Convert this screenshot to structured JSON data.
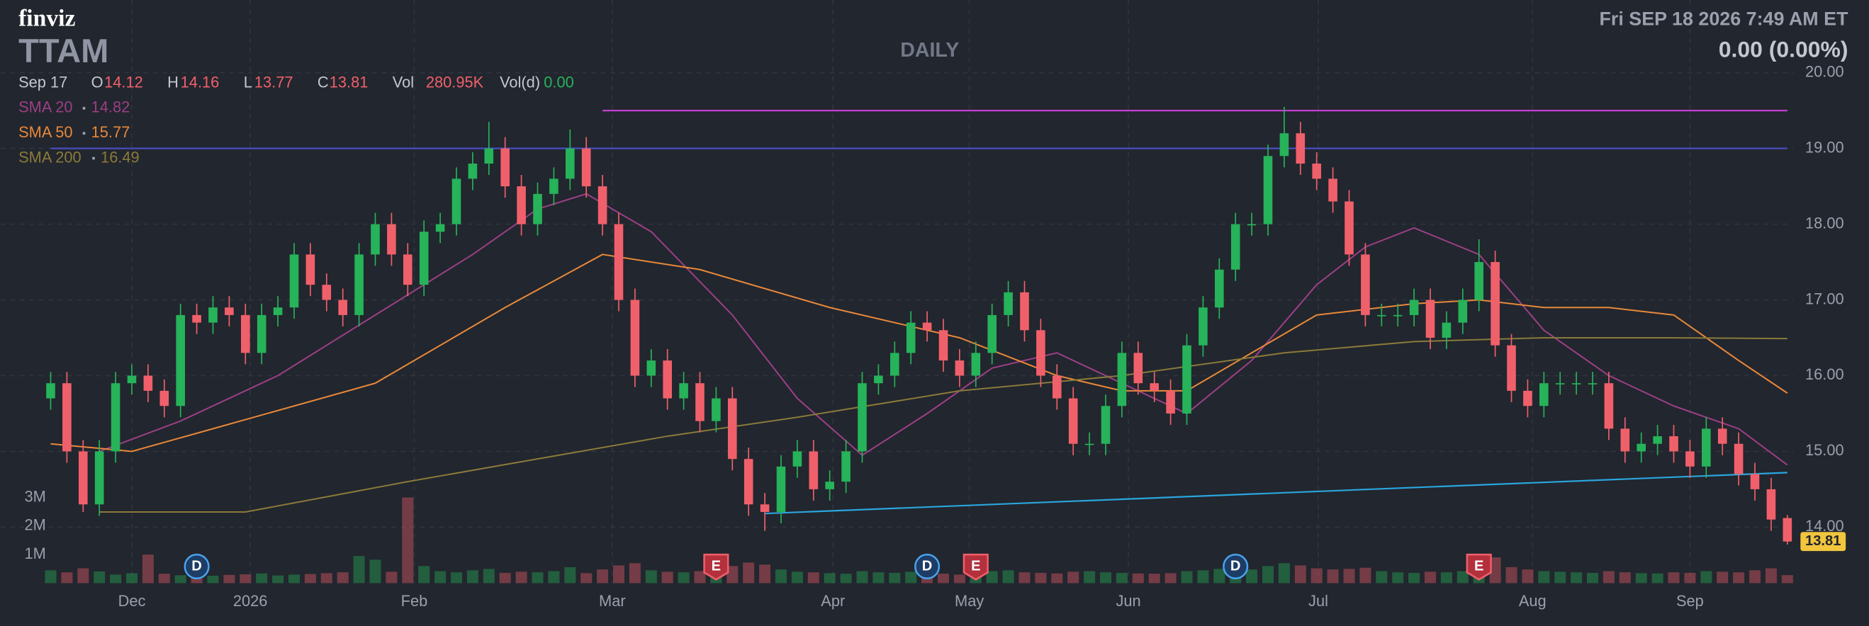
{
  "header": {
    "brand": "finviz",
    "ticker": "TTAM",
    "timeframe": "DAILY",
    "datetime": "Fri SEP 18 2026 7:49 AM ET",
    "change": "0.00 (0.00%)"
  },
  "chart_data": {
    "type": "candlestick",
    "legend": {
      "date": "Sep 17",
      "o": "O",
      "h": "H",
      "l": "L",
      "c": "C",
      "vol": "Vol",
      "vol_value": "280.95K",
      "vold": "Vol(d)",
      "vold_value": "0.00"
    },
    "up_color": "#26b35a",
    "down_color": "#f0606b",
    "xlim": [
      0,
      107
    ],
    "xticks": [
      {
        "value": 5,
        "label": "Dec"
      },
      {
        "value": 12.3,
        "label": "2026"
      },
      {
        "value": 22.4,
        "label": "Feb"
      },
      {
        "value": 34.6,
        "label": "Mar"
      },
      {
        "value": 48.2,
        "label": "Apr"
      },
      {
        "value": 56.6,
        "label": "May"
      },
      {
        "value": 66.4,
        "label": "Jun"
      },
      {
        "value": 78.1,
        "label": "Jul"
      },
      {
        "value": 91.3,
        "label": "Aug"
      },
      {
        "value": 101,
        "label": "Sep"
      }
    ],
    "ylim": [
      13.26,
      20.96
    ],
    "yticks": [
      {
        "value": 14,
        "label": "14.00"
      },
      {
        "value": 15,
        "label": "15.00"
      },
      {
        "value": 16,
        "label": "16.00"
      },
      {
        "value": 17,
        "label": "17.00"
      },
      {
        "value": 18,
        "label": "18.00"
      },
      {
        "value": 19,
        "label": "19.00"
      },
      {
        "value": 20,
        "label": "20.00"
      }
    ],
    "grid": true,
    "volume_lim": [
      0,
      3000000
    ],
    "volume_ticks": [
      {
        "value": 1000000,
        "label": "1M"
      },
      {
        "value": 2000000,
        "label": "2M"
      },
      {
        "value": 3000000,
        "label": "3M"
      }
    ],
    "open": [
      15.7,
      15.9,
      15.0,
      14.3,
      15.0,
      15.9,
      16.0,
      15.8,
      15.6,
      16.8,
      16.7,
      16.9,
      16.8,
      16.3,
      16.8,
      16.9,
      17.6,
      17.2,
      17.0,
      16.8,
      17.6,
      18.0,
      17.6,
      17.2,
      17.9,
      18.0,
      18.6,
      18.8,
      19.0,
      18.5,
      18.0,
      18.4,
      18.6,
      19.0,
      18.5,
      18.0,
      17.0,
      16.0,
      16.2,
      15.7,
      15.9,
      15.4,
      15.7,
      14.9,
      14.3,
      14.2,
      14.8,
      15.0,
      14.5,
      14.6,
      15.0,
      15.9,
      16.0,
      16.3,
      16.7,
      16.6,
      16.2,
      16.0,
      16.3,
      16.8,
      17.1,
      16.6,
      16.0,
      15.7,
      15.1,
      15.1,
      15.6,
      16.3,
      15.9,
      15.8,
      15.5,
      16.4,
      16.9,
      17.4,
      18.0,
      18.0,
      18.9,
      19.2,
      18.8,
      18.6,
      18.3,
      17.6,
      16.8,
      16.8,
      16.8,
      17.0,
      16.5,
      16.7,
      17.0,
      17.5,
      16.4,
      15.8,
      15.6,
      15.9,
      15.9,
      15.9,
      15.9,
      15.3,
      15.0,
      15.1,
      15.2,
      15.0,
      14.8,
      15.3,
      15.1,
      14.7,
      14.5,
      14.12
    ],
    "high": [
      16.05,
      16.05,
      15.15,
      15.15,
      16.05,
      16.15,
      16.15,
      15.95,
      16.95,
      16.95,
      17.05,
      17.05,
      16.95,
      16.95,
      17.05,
      17.75,
      17.75,
      17.35,
      17.15,
      17.75,
      18.15,
      18.15,
      17.75,
      18.05,
      18.15,
      18.75,
      18.95,
      19.35,
      19.15,
      18.65,
      18.55,
      18.75,
      19.25,
      19.15,
      18.65,
      18.15,
      17.15,
      16.35,
      16.35,
      16.05,
      16.05,
      15.85,
      15.85,
      15.05,
      14.45,
      14.95,
      15.15,
      15.15,
      14.75,
      15.15,
      16.05,
      16.15,
      16.45,
      16.85,
      16.85,
      16.75,
      16.35,
      16.45,
      16.95,
      17.25,
      17.25,
      16.75,
      16.15,
      15.85,
      15.25,
      15.75,
      16.45,
      16.45,
      16.05,
      15.95,
      16.55,
      17.05,
      17.55,
      18.15,
      18.15,
      19.05,
      19.55,
      19.35,
      18.95,
      18.75,
      18.45,
      17.75,
      16.95,
      16.95,
      17.15,
      17.15,
      16.85,
      17.15,
      17.8,
      17.65,
      16.55,
      15.95,
      16.05,
      16.05,
      16.05,
      16.05,
      16.05,
      15.45,
      15.25,
      15.35,
      15.35,
      15.15,
      15.45,
      15.45,
      15.25,
      14.85,
      14.65,
      14.16
    ],
    "low": [
      15.55,
      14.85,
      14.2,
      14.15,
      14.85,
      15.75,
      15.65,
      15.45,
      15.45,
      16.55,
      16.55,
      16.65,
      16.15,
      16.15,
      16.65,
      16.75,
      17.05,
      16.85,
      16.65,
      16.65,
      17.45,
      17.45,
      17.05,
      17.05,
      17.75,
      17.85,
      18.45,
      18.65,
      18.35,
      17.85,
      17.85,
      18.25,
      18.45,
      18.35,
      17.85,
      16.85,
      15.85,
      15.85,
      15.55,
      15.55,
      15.25,
      15.25,
      14.75,
      14.15,
      13.95,
      14.05,
      14.65,
      14.35,
      14.35,
      14.45,
      14.85,
      15.75,
      15.85,
      16.15,
      16.45,
      16.05,
      15.85,
      15.85,
      16.15,
      16.65,
      16.45,
      15.85,
      15.55,
      14.95,
      14.95,
      14.95,
      15.45,
      15.75,
      15.65,
      15.35,
      15.35,
      16.25,
      16.75,
      17.25,
      17.85,
      17.85,
      18.75,
      18.65,
      18.45,
      18.15,
      17.45,
      16.65,
      16.65,
      16.65,
      16.65,
      16.35,
      16.35,
      16.55,
      16.85,
      16.25,
      15.65,
      15.45,
      15.45,
      15.75,
      15.75,
      15.75,
      15.15,
      14.85,
      14.85,
      14.95,
      14.85,
      14.65,
      14.65,
      14.95,
      14.55,
      14.35,
      13.95,
      13.77
    ],
    "close": [
      15.9,
      15.0,
      14.3,
      15.0,
      15.9,
      16.0,
      15.8,
      15.6,
      16.8,
      16.7,
      16.9,
      16.8,
      16.3,
      16.8,
      16.9,
      17.6,
      17.2,
      17.0,
      16.8,
      17.6,
      18.0,
      17.6,
      17.2,
      17.9,
      18.0,
      18.6,
      18.8,
      19.0,
      18.5,
      18.0,
      18.4,
      18.6,
      19.0,
      18.5,
      18.0,
      17.0,
      16.0,
      16.2,
      15.7,
      15.9,
      15.4,
      15.7,
      14.9,
      14.3,
      14.2,
      14.8,
      15.0,
      14.5,
      14.6,
      15.0,
      15.9,
      16.0,
      16.3,
      16.7,
      16.6,
      16.2,
      16.0,
      16.3,
      16.8,
      17.1,
      16.6,
      16.0,
      15.7,
      15.1,
      15.1,
      15.6,
      16.3,
      15.9,
      15.8,
      15.5,
      16.4,
      16.9,
      17.4,
      18.0,
      18.0,
      18.9,
      19.2,
      18.8,
      18.6,
      18.3,
      17.6,
      16.8,
      16.8,
      16.8,
      17.0,
      16.5,
      16.7,
      17.0,
      17.5,
      16.4,
      15.8,
      15.6,
      15.9,
      15.9,
      15.9,
      15.9,
      15.3,
      15.0,
      15.1,
      15.2,
      15.0,
      14.8,
      15.3,
      15.1,
      14.7,
      14.5,
      14.1,
      13.81
    ],
    "volume": [
      450000,
      380000,
      520000,
      410000,
      300000,
      350000,
      1000000,
      330000,
      280000,
      300000,
      260000,
      290000,
      310000,
      340000,
      270000,
      300000,
      320000,
      350000,
      380000,
      950000,
      820000,
      400000,
      3000000,
      600000,
      420000,
      380000,
      450000,
      500000,
      360000,
      400000,
      380000,
      420000,
      560000,
      350000,
      480000,
      620000,
      700000,
      450000,
      400000,
      380000,
      420000,
      360000,
      600000,
      720000,
      650000,
      480000,
      400000,
      380000,
      350000,
      330000,
      420000,
      380000,
      360000,
      400000,
      350000,
      330000,
      300000,
      380000,
      420000,
      450000,
      380000,
      360000,
      340000,
      400000,
      420000,
      380000,
      360000,
      340000,
      330000,
      350000,
      420000,
      450000,
      500000,
      560000,
      480000,
      600000,
      700000,
      620000,
      520000,
      480000,
      500000,
      540000,
      420000,
      380000,
      360000,
      400000,
      380000,
      420000,
      650000,
      900000,
      560000,
      480000,
      420000,
      400000,
      380000,
      360000,
      420000,
      380000,
      350000,
      340000,
      380000,
      360000,
      420000,
      400000,
      380000,
      450000,
      520000,
      280950
    ],
    "sma": [
      {
        "name": "SMA 20",
        "color": "#9b3f86",
        "last": 14.82,
        "x": [
          3,
          8,
          14,
          20,
          26,
          30,
          33,
          37,
          42,
          46,
          50,
          54,
          58,
          62,
          66,
          70,
          74,
          78,
          81,
          84,
          88,
          92,
          96,
          100,
          104,
          107
        ],
        "values": [
          15.0,
          15.4,
          16.0,
          16.8,
          17.6,
          18.2,
          18.4,
          17.9,
          16.8,
          15.7,
          14.95,
          15.5,
          16.1,
          16.3,
          15.9,
          15.5,
          16.2,
          17.2,
          17.7,
          17.95,
          17.6,
          16.6,
          16.0,
          15.6,
          15.3,
          14.82
        ]
      },
      {
        "name": "SMA 50",
        "color": "#e8883a",
        "last": 15.77,
        "x": [
          0,
          5,
          10,
          20,
          28,
          34,
          40,
          48,
          56,
          62,
          66,
          70,
          74,
          78,
          84,
          88,
          92,
          96,
          100,
          104,
          107
        ],
        "values": [
          15.1,
          15.0,
          15.3,
          15.9,
          16.9,
          17.6,
          17.4,
          16.9,
          16.5,
          16.0,
          15.8,
          15.8,
          16.3,
          16.8,
          16.95,
          17.0,
          16.9,
          16.9,
          16.8,
          16.2,
          15.77
        ]
      },
      {
        "name": "SMA 200",
        "color": "#8a7a3a",
        "last": 16.49,
        "x": [
          3,
          12,
          22,
          30,
          38,
          46,
          56,
          66,
          76,
          84,
          92,
          100,
          107
        ],
        "values": [
          14.2,
          14.2,
          14.6,
          14.9,
          15.2,
          15.45,
          15.8,
          16.0,
          16.3,
          16.45,
          16.5,
          16.5,
          16.49
        ]
      }
    ],
    "trendlines": [
      {
        "color": "#c43fd0",
        "x": [
          34,
          107
        ],
        "values": [
          19.5,
          19.5
        ]
      },
      {
        "color": "#4a4fc9",
        "x": [
          0,
          107
        ],
        "values": [
          19.0,
          19.0
        ]
      },
      {
        "color": "#2aa6de",
        "x": [
          44,
          107
        ],
        "values": [
          14.18,
          14.72
        ]
      }
    ],
    "events": [
      {
        "label": "D",
        "x": 9
      },
      {
        "label": "E",
        "x": 41
      },
      {
        "label": "D",
        "x": 54
      },
      {
        "label": "E",
        "x": 57
      },
      {
        "label": "D",
        "x": 73
      },
      {
        "label": "E",
        "x": 88
      }
    ]
  }
}
